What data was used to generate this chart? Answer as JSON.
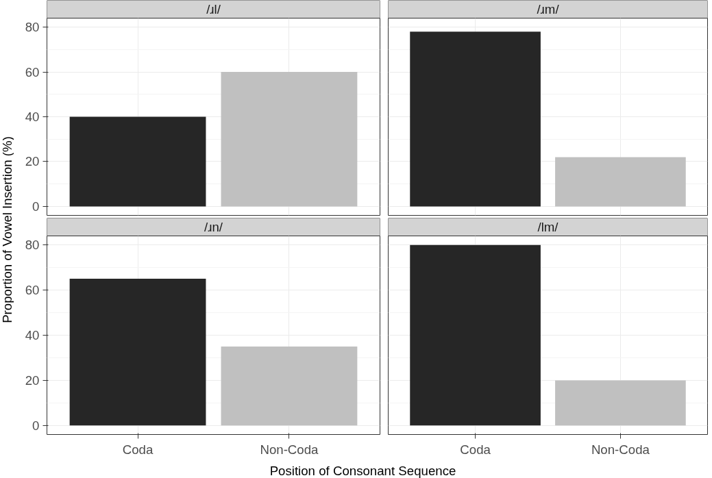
{
  "chart_data": [
    {
      "type": "bar",
      "title": "/ɹl/",
      "categories": [
        "Coda",
        "Non-Coda"
      ],
      "values": [
        40,
        60
      ],
      "colors": [
        "#262626",
        "#c0c0c0"
      ],
      "ylim": [
        -4,
        84
      ],
      "yticks": [
        0,
        20,
        40,
        60,
        80
      ],
      "grid": true,
      "tick_labels": "y",
      "ylabel": "Proportion of Vowel Insertion (%)"
    },
    {
      "type": "bar",
      "title": "/ɹm/",
      "categories": [
        "Coda",
        "Non-Coda"
      ],
      "values": [
        78,
        22
      ],
      "colors": [
        "#262626",
        "#c0c0c0"
      ],
      "ylim": [
        -4,
        84
      ],
      "yticks": [
        0,
        20,
        40,
        60,
        80
      ],
      "grid": true,
      "tick_labels": false
    },
    {
      "type": "bar",
      "title": "/ɹn/",
      "categories": [
        "Coda",
        "Non-Coda"
      ],
      "values": [
        65,
        35
      ],
      "colors": [
        "#262626",
        "#c0c0c0"
      ],
      "ylim": [
        -4,
        84
      ],
      "yticks": [
        0,
        20,
        40,
        60,
        80
      ],
      "grid": true,
      "xlabel": "Position of Consonant Sequence"
    },
    {
      "type": "bar",
      "title": "/lm/",
      "categories": [
        "Coda",
        "Non-Coda"
      ],
      "values": [
        80,
        20
      ],
      "colors": [
        "#262626",
        "#c0c0c0"
      ],
      "ylim": [
        -4,
        84
      ],
      "yticks": [
        0,
        20,
        40,
        60,
        80
      ],
      "grid": true,
      "tick_labels": "x"
    }
  ]
}
